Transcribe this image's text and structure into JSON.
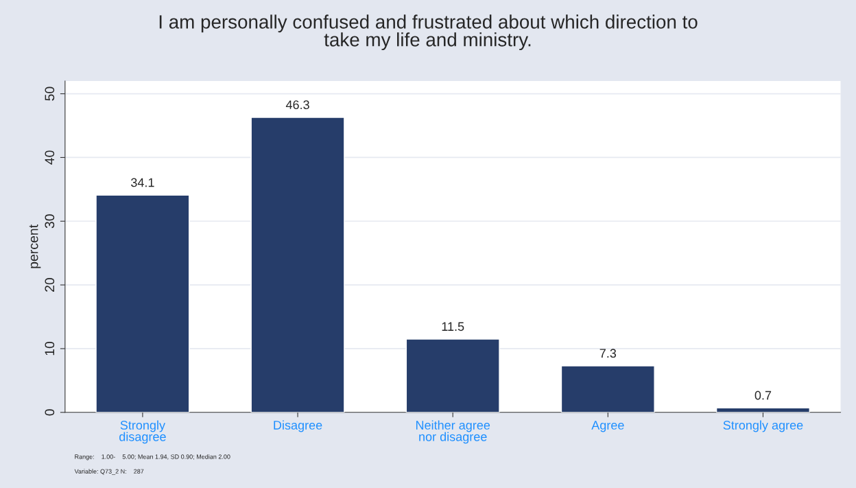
{
  "chart_data": {
    "type": "bar",
    "title": "I am personally confused and frustrated about which direction to\ntake my life and ministry.",
    "ylabel": "percent",
    "categories": [
      "Strongly\ndisagree",
      "Disagree",
      "Neither agree\nnor disagree",
      "Agree",
      "Strongly agree"
    ],
    "values": [
      34.1,
      46.3,
      11.5,
      7.3,
      0.7
    ],
    "color": "#263d6a",
    "ylim": [
      0,
      52
    ],
    "yticks": [
      0,
      10,
      20,
      30,
      40,
      50
    ],
    "grid": "y",
    "data_labels": true,
    "annotations": [
      "Range:    1.00-    5.00; Mean 1.94, SD 0.90; Median 2.00",
      "Variable: Q73_2 N:    287"
    ]
  }
}
